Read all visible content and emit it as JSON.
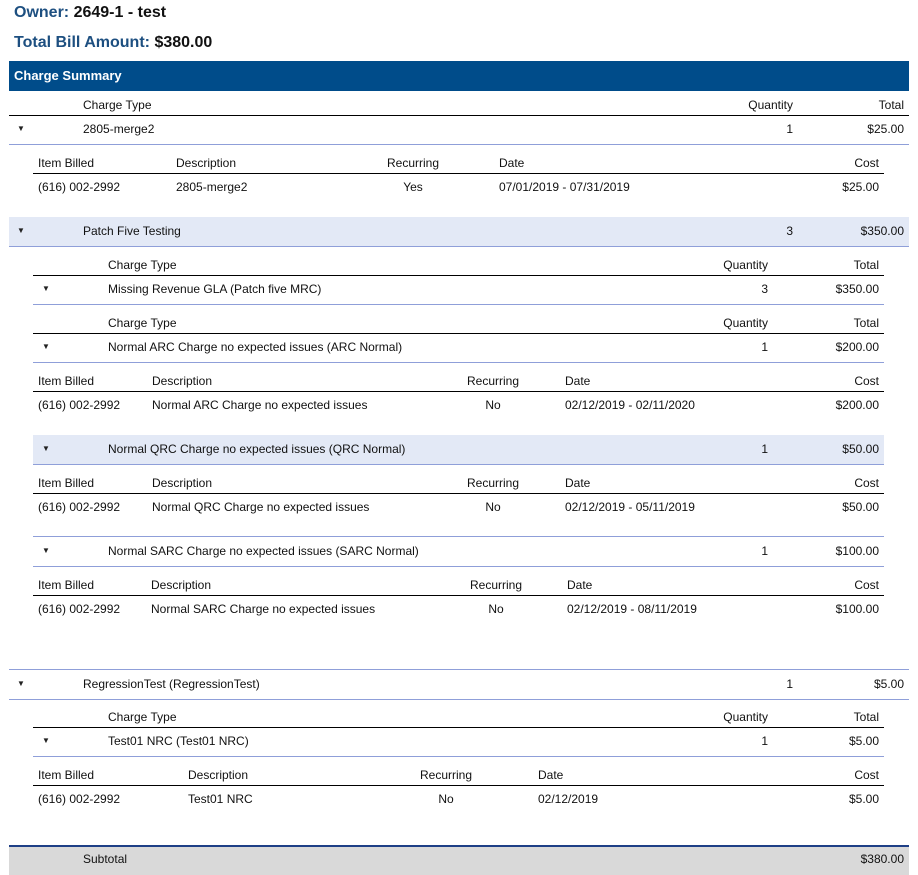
{
  "owner": {
    "label": "Owner:",
    "value": "2649-1 - test"
  },
  "total_bill": {
    "label": "Total Bill Amount:",
    "value": "$380.00"
  },
  "section_title": "Charge Summary",
  "columns": {
    "charge_type": "Charge Type",
    "quantity": "Quantity",
    "total": "Total",
    "item_billed": "Item Billed",
    "description": "Description",
    "recurring": "Recurring",
    "date": "Date",
    "cost": "Cost"
  },
  "groups": [
    {
      "name": "2805-merge2",
      "quantity": "1",
      "total": "$25.00",
      "items": [
        {
          "item_billed": "(616) 002-2992",
          "description": "2805-merge2",
          "recurring": "Yes",
          "date": "07/01/2019 - 07/31/2019",
          "cost": "$25.00"
        }
      ]
    },
    {
      "name": "Patch Five Testing",
      "quantity": "3",
      "total": "$350.00",
      "children": [
        {
          "name": "Missing Revenue GLA (Patch five MRC)",
          "quantity": "3",
          "total": "$350.00",
          "children": [
            {
              "name": "Normal ARC Charge no expected issues (ARC Normal)",
              "quantity": "1",
              "total": "$200.00",
              "items": [
                {
                  "item_billed": "(616) 002-2992",
                  "description": "Normal ARC Charge no expected issues",
                  "recurring": "No",
                  "date": "02/12/2019 - 02/11/2020",
                  "cost": "$200.00"
                }
              ]
            },
            {
              "name": "Normal QRC Charge no expected issues (QRC Normal)",
              "quantity": "1",
              "total": "$50.00",
              "items": [
                {
                  "item_billed": "(616) 002-2992",
                  "description": "Normal QRC Charge no expected issues",
                  "recurring": "No",
                  "date": "02/12/2019 - 05/11/2019",
                  "cost": "$50.00"
                }
              ]
            },
            {
              "name": "Normal SARC Charge no expected issues (SARC Normal)",
              "quantity": "1",
              "total": "$100.00",
              "items": [
                {
                  "item_billed": "(616) 002-2992",
                  "description": "Normal SARC Charge no expected issues",
                  "recurring": "No",
                  "date": "02/12/2019 - 08/11/2019",
                  "cost": "$100.00"
                }
              ]
            }
          ]
        }
      ]
    },
    {
      "name": "RegressionTest (RegressionTest)",
      "quantity": "1",
      "total": "$5.00",
      "children": [
        {
          "name": "Test01 NRC (Test01 NRC)",
          "quantity": "1",
          "total": "$5.00",
          "items": [
            {
              "item_billed": "(616) 002-2992",
              "description": "Test01 NRC",
              "recurring": "No",
              "date": "02/12/2019",
              "cost": "$5.00"
            }
          ]
        }
      ]
    }
  ],
  "subtotal": {
    "label": "Subtotal",
    "value": "$380.00"
  },
  "colors": {
    "header_bar": "#004c8a",
    "label_text": "#1d4f80",
    "highlight_row": "#e3e9f6",
    "subtotal_bg": "#d9d9d9",
    "divider": "#8f9fd9"
  }
}
